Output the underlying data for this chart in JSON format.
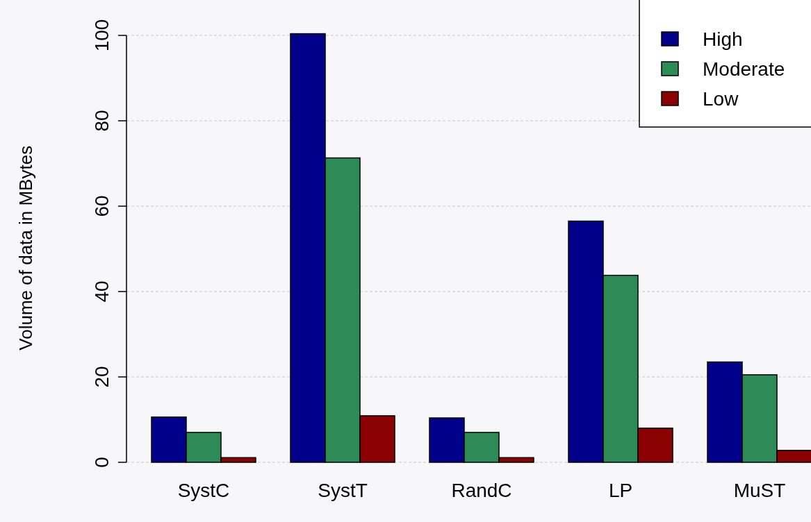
{
  "chart_data": {
    "type": "bar",
    "ylabel": "Volume of data in MBytes",
    "categories": [
      "SystC",
      "SystT",
      "RandC",
      "LP",
      "MuST"
    ],
    "series": [
      {
        "name": "High",
        "color": "#00008b",
        "values": [
          10.6,
          100.4,
          10.4,
          56.5,
          23.5
        ]
      },
      {
        "name": "Moderate",
        "color": "#2e8b57",
        "values": [
          7.0,
          71.3,
          7.0,
          43.8,
          20.5
        ]
      },
      {
        "name": "Low",
        "color": "#8b0000",
        "values": [
          1.1,
          10.9,
          1.1,
          8.0,
          2.8
        ]
      }
    ],
    "ylim": [
      0,
      100.4
    ],
    "yticks": [
      0,
      20,
      40,
      60,
      80,
      100
    ],
    "grid": "y",
    "legend": "top right"
  }
}
